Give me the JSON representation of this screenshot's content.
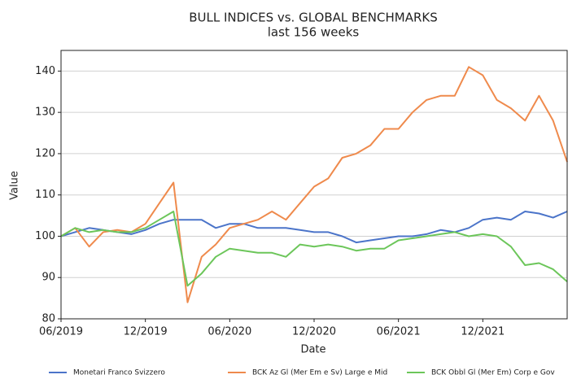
{
  "chart_data": {
    "type": "line",
    "title": "BULL INDICES vs. GLOBAL BENCHMARKS",
    "subtitle": "last 156 weeks",
    "x_label": "Date",
    "y_label": "Value",
    "x": [
      "2019-06",
      "2019-07",
      "2019-08",
      "2019-09",
      "2019-10",
      "2019-11",
      "2019-12",
      "2020-01",
      "2020-02",
      "2020-03",
      "2020-04",
      "2020-05",
      "2020-06",
      "2020-07",
      "2020-08",
      "2020-09",
      "2020-10",
      "2020-11",
      "2020-12",
      "2021-01",
      "2021-02",
      "2021-03",
      "2021-04",
      "2021-05",
      "2021-06",
      "2021-07",
      "2021-08",
      "2021-09",
      "2021-10",
      "2021-11",
      "2021-12",
      "2022-01",
      "2022-02",
      "2022-03",
      "2022-04",
      "2022-05",
      "2022-06"
    ],
    "xlim": [
      "2019-06",
      "2022-06"
    ],
    "xticks": [
      {
        "value": "2019-06",
        "label": "06/2019"
      },
      {
        "value": "2019-12",
        "label": "12/2019"
      },
      {
        "value": "2020-06",
        "label": "06/2020"
      },
      {
        "value": "2020-12",
        "label": "12/2020"
      },
      {
        "value": "2021-06",
        "label": "06/2021"
      },
      {
        "value": "2021-12",
        "label": "12/2021"
      }
    ],
    "ylim": [
      80,
      145
    ],
    "yticks": [
      80,
      90,
      100,
      110,
      120,
      130,
      140
    ],
    "grid": true,
    "legend": "bottom",
    "series": [
      {
        "name": "Monetari Franco Svizzero",
        "color": "#4b74c9",
        "values": [
          100,
          101,
          102,
          101.5,
          101,
          100.5,
          101.5,
          103,
          104,
          104,
          104,
          102,
          103,
          103,
          102,
          102,
          102,
          101.5,
          101,
          101,
          100,
          98.5,
          99,
          99.5,
          100,
          100,
          100.5,
          101.5,
          101,
          102,
          104,
          104.5,
          104,
          106,
          105.5,
          104.5,
          106
        ]
      },
      {
        "name": "BCK Az Gl (Mer Em e Sv) Large e Mid",
        "color": "#ef8a4c",
        "values": [
          100,
          102,
          97.5,
          101,
          101.5,
          101,
          103,
          108,
          113,
          84,
          95,
          98,
          102,
          103,
          104,
          106,
          104,
          108,
          112,
          114,
          119,
          120,
          122,
          126,
          126,
          130,
          133,
          134,
          134,
          141,
          139,
          133,
          131,
          128,
          134,
          128,
          118
        ]
      },
      {
        "name": "BCK Obbl Gl (Mer Em) Corp e Gov",
        "color": "#6cc65a",
        "values": [
          100,
          102,
          101,
          101.5,
          101,
          101,
          102,
          104,
          106,
          88,
          91,
          95,
          97,
          96.5,
          96,
          96,
          95,
          98,
          97.5,
          98,
          97.5,
          96.5,
          97,
          97,
          99,
          99.5,
          100,
          100.5,
          101,
          100,
          100.5,
          100,
          97.5,
          93,
          93.5,
          92,
          89
        ]
      }
    ]
  }
}
